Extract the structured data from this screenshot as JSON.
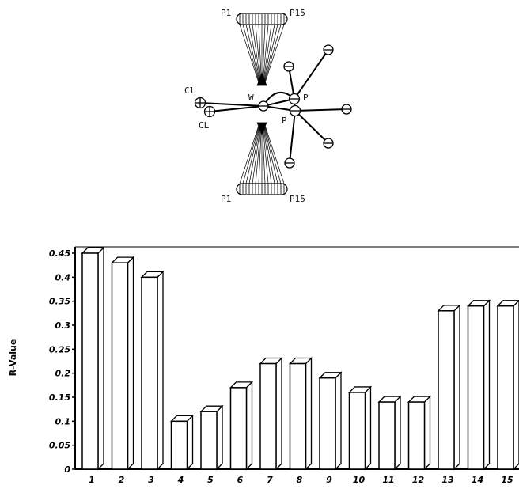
{
  "molecule": {
    "labels": {
      "top_left": "P1",
      "top_right": "P15",
      "bottom_left": "P1",
      "bottom_right": "P15",
      "cl_upper": "Cl",
      "cl_lower": "CL",
      "w": "W",
      "p_upper": "P",
      "p_lower": "P"
    }
  },
  "chart_data": {
    "type": "bar",
    "categories": [
      "1",
      "2",
      "3",
      "4",
      "5",
      "6",
      "7",
      "8",
      "9",
      "10",
      "11",
      "12",
      "13",
      "14",
      "15"
    ],
    "values": [
      0.45,
      0.43,
      0.4,
      0.1,
      0.12,
      0.17,
      0.22,
      0.22,
      0.19,
      0.16,
      0.14,
      0.14,
      0.33,
      0.34,
      0.34
    ],
    "title": "",
    "xlabel": "",
    "ylabel": "R-Value",
    "ylim": [
      0,
      0.45
    ],
    "yticks": [
      "0",
      "0.05",
      "0.1",
      "0.15",
      "0.2",
      "0.25",
      "0.3",
      "0.35",
      "0.4",
      "0.45"
    ],
    "grid": false,
    "style": "3d-bars"
  }
}
